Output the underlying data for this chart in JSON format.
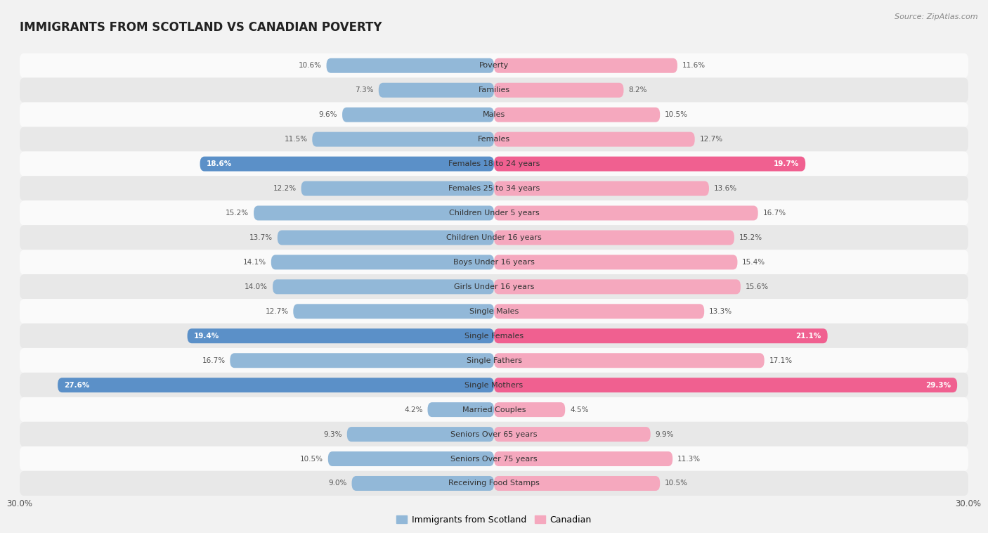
{
  "title": "IMMIGRANTS FROM SCOTLAND VS CANADIAN POVERTY",
  "source": "Source: ZipAtlas.com",
  "categories": [
    "Poverty",
    "Families",
    "Males",
    "Females",
    "Females 18 to 24 years",
    "Females 25 to 34 years",
    "Children Under 5 years",
    "Children Under 16 years",
    "Boys Under 16 years",
    "Girls Under 16 years",
    "Single Males",
    "Single Females",
    "Single Fathers",
    "Single Mothers",
    "Married Couples",
    "Seniors Over 65 years",
    "Seniors Over 75 years",
    "Receiving Food Stamps"
  ],
  "scotland_values": [
    10.6,
    7.3,
    9.6,
    11.5,
    18.6,
    12.2,
    15.2,
    13.7,
    14.1,
    14.0,
    12.7,
    19.4,
    16.7,
    27.6,
    4.2,
    9.3,
    10.5,
    9.0
  ],
  "canadian_values": [
    11.6,
    8.2,
    10.5,
    12.7,
    19.7,
    13.6,
    16.7,
    15.2,
    15.4,
    15.6,
    13.3,
    21.1,
    17.1,
    29.3,
    4.5,
    9.9,
    11.3,
    10.5
  ],
  "scotland_color": "#92b8d8",
  "canadian_color": "#f5a8be",
  "scotland_highlight_color": "#5b90c8",
  "canadian_highlight_color": "#f06090",
  "highlight_rows": [
    4,
    11,
    13
  ],
  "background_color": "#f2f2f2",
  "row_bg_light": "#fafafa",
  "row_bg_dark": "#e8e8e8",
  "xlim": 30.0,
  "bar_height": 0.6,
  "label_fontsize": 8.0,
  "value_fontsize": 7.5,
  "title_fontsize": 12
}
